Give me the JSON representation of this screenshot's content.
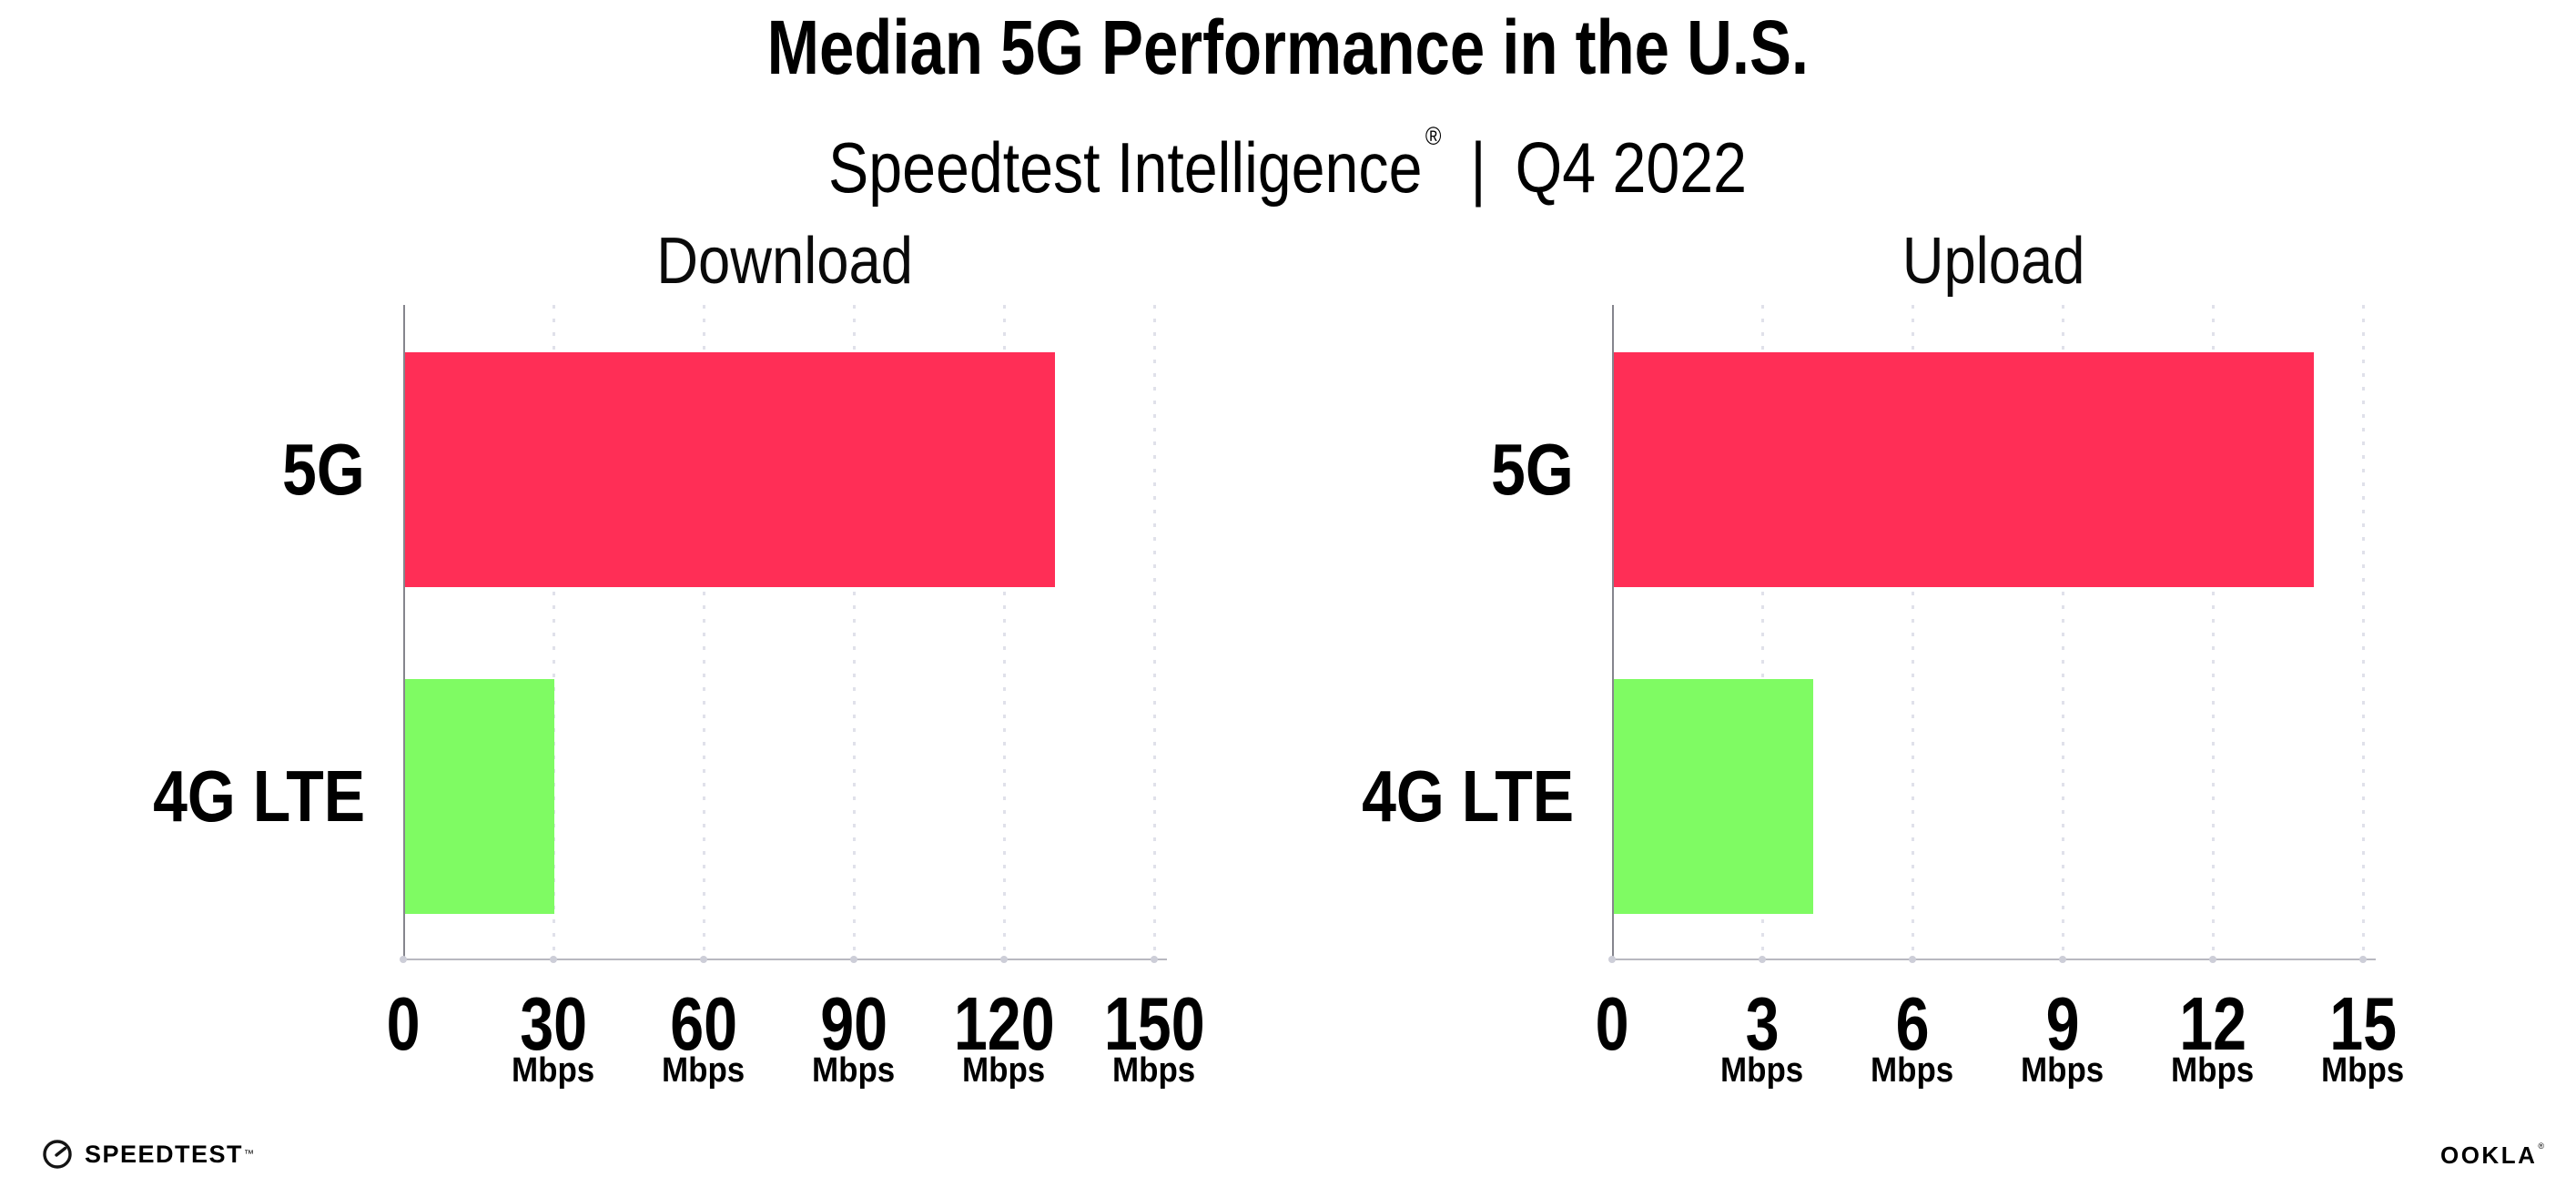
{
  "header": {
    "title": "Median 5G Performance in the U.S.",
    "subtitle": {
      "product": "Speedtest Intelligence",
      "registered_mark": "®",
      "separator": "|",
      "period": "Q4 2022"
    }
  },
  "chart_data": [
    {
      "type": "bar",
      "orientation": "horizontal",
      "title": "Download",
      "categories": [
        "5G",
        "4G LTE"
      ],
      "values": [
        130,
        30
      ],
      "unit": "Mbps",
      "xlim": [
        0,
        150
      ],
      "xticks": [
        0,
        30,
        60,
        90,
        120,
        150
      ],
      "bar_colors": [
        "#FF2E56",
        "#7FFB63"
      ],
      "grid": "dotted-vertical",
      "legend": "none"
    },
    {
      "type": "bar",
      "orientation": "horizontal",
      "title": "Upload",
      "categories": [
        "5G",
        "4G LTE"
      ],
      "values": [
        14,
        4
      ],
      "unit": "Mbps",
      "xlim": [
        0,
        15
      ],
      "xticks": [
        0,
        3,
        6,
        9,
        12,
        15
      ],
      "bar_colors": [
        "#FF2E56",
        "#7FFB63"
      ],
      "grid": "dotted-vertical",
      "legend": "none"
    }
  ],
  "colors": {
    "bar_5g": "#FF2E56",
    "bar_4g_lte": "#7FFB63",
    "gridline": "#E0E1EA",
    "y_axis": "#85858D",
    "x_axis": "#B8B8C0",
    "axis_dot": "#CDCED8",
    "text": "#000000",
    "background": "#FFFFFF"
  },
  "footer": {
    "speedtest": "SPEEDTEST",
    "speedtest_mark": "™",
    "ookla": "OOKLA",
    "ookla_mark": "®"
  }
}
